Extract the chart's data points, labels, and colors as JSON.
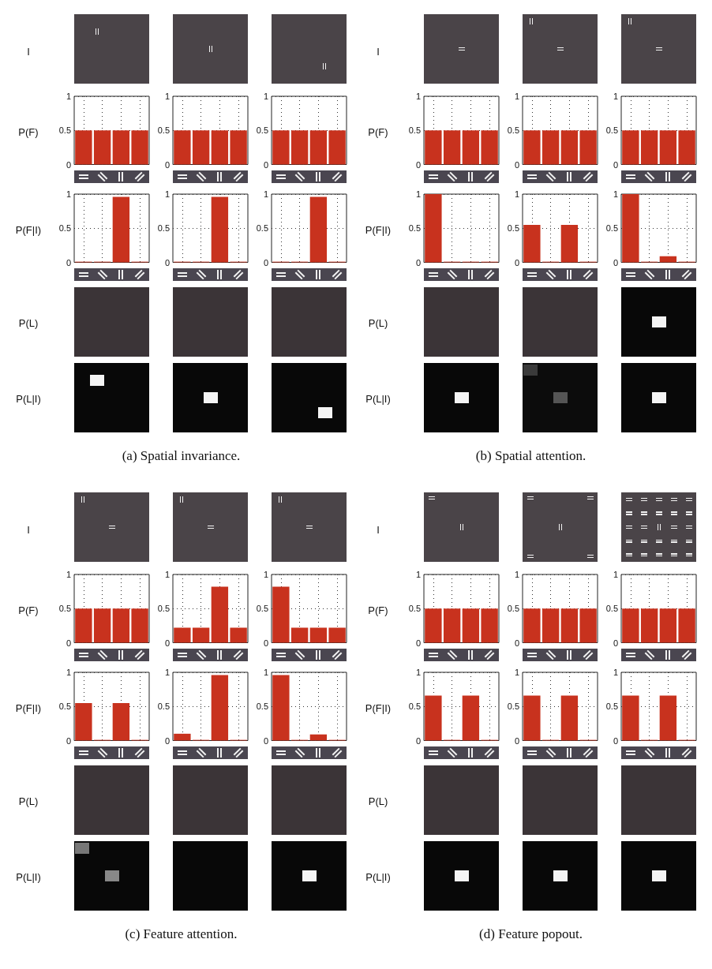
{
  "chart_data": [
    {
      "type": "other",
      "annotations": [
        "I",
        "P(L)",
        "P(L|I)",
        "(a) Spatial invariance."
      ]
    },
    {
      "type": "bar",
      "ylabel": "P(F)",
      "categories": [
        null,
        null,
        null,
        null
      ],
      "values": [
        0.5,
        0.5,
        0.5,
        0.5
      ],
      "color": "#c8321e",
      "ylim": [
        0,
        1
      ],
      "yticks": [
        0,
        0.5,
        1
      ],
      "grid": true
    },
    {
      "type": "bar",
      "categories": [
        null,
        null,
        null,
        null
      ],
      "values": [
        0.5,
        0.5,
        0.5,
        0.5
      ],
      "color": "#c8321e",
      "ylim": [
        0,
        1
      ],
      "yticks": [
        0,
        0.5,
        1
      ],
      "grid": true
    },
    {
      "type": "bar",
      "categories": [
        null,
        null,
        null,
        null
      ],
      "values": [
        0.5,
        0.5,
        0.5,
        0.5
      ],
      "color": "#c8321e",
      "ylim": [
        0,
        1
      ],
      "yticks": [
        0,
        0.5,
        1
      ],
      "grid": true
    },
    {
      "type": "bar",
      "ylabel": "P(F|I)",
      "categories": [
        null,
        null,
        null,
        null
      ],
      "values": [
        0.01,
        0.01,
        0.96,
        0.01
      ],
      "color": "#c8321e",
      "ylim": [
        0,
        1
      ],
      "yticks": [
        0,
        0.5,
        1
      ],
      "grid": true
    },
    {
      "type": "bar",
      "categories": [
        null,
        null,
        null,
        null
      ],
      "values": [
        0.01,
        0.01,
        0.96,
        0.01
      ],
      "color": "#c8321e",
      "ylim": [
        0,
        1
      ],
      "yticks": [
        0,
        0.5,
        1
      ],
      "grid": true
    },
    {
      "type": "bar",
      "categories": [
        null,
        null,
        null,
        null
      ],
      "values": [
        0.01,
        0.01,
        0.96,
        0.01
      ],
      "color": "#c8321e",
      "ylim": [
        0,
        1
      ],
      "yticks": [
        0,
        0.5,
        1
      ],
      "grid": true
    },
    {
      "type": "other",
      "annotations": [
        "I",
        "P(L)",
        "P(L|I)",
        "(b) Spatial attention."
      ]
    },
    {
      "type": "bar",
      "ylabel": "P(F)",
      "categories": [
        null,
        null,
        null,
        null
      ],
      "values": [
        0.5,
        0.5,
        0.5,
        0.5
      ],
      "color": "#c8321e",
      "ylim": [
        0,
        1
      ],
      "yticks": [
        0,
        0.5,
        1
      ],
      "grid": true
    },
    {
      "type": "bar",
      "categories": [
        null,
        null,
        null,
        null
      ],
      "values": [
        0.5,
        0.5,
        0.5,
        0.5
      ],
      "color": "#c8321e",
      "ylim": [
        0,
        1
      ],
      "yticks": [
        0,
        0.5,
        1
      ],
      "grid": true
    },
    {
      "type": "bar",
      "categories": [
        null,
        null,
        null,
        null
      ],
      "values": [
        0.5,
        0.5,
        0.5,
        0.5
      ],
      "color": "#c8321e",
      "ylim": [
        0,
        1
      ],
      "yticks": [
        0,
        0.5,
        1
      ],
      "grid": true
    },
    {
      "type": "bar",
      "ylabel": "P(F|I)",
      "categories": [
        null,
        null,
        null,
        null
      ],
      "values": [
        1,
        0.01,
        0.01,
        0.01
      ],
      "color": "#c8321e",
      "ylim": [
        0,
        1
      ],
      "yticks": [
        0,
        0.5,
        1
      ],
      "grid": true
    },
    {
      "type": "bar",
      "categories": [
        null,
        null,
        null,
        null
      ],
      "values": [
        0.55,
        0.01,
        0.55,
        0.01
      ],
      "color": "#c8321e",
      "ylim": [
        0,
        1
      ],
      "yticks": [
        0,
        0.5,
        1
      ],
      "grid": true
    },
    {
      "type": "bar",
      "categories": [
        null,
        null,
        null,
        null
      ],
      "values": [
        1,
        0.01,
        0.09,
        0.01
      ],
      "color": "#c8321e",
      "ylim": [
        0,
        1
      ],
      "yticks": [
        0,
        0.5,
        1
      ],
      "grid": true
    },
    {
      "type": "other",
      "annotations": [
        "I",
        "P(L)",
        "P(L|I)",
        "(c) Feature attention."
      ]
    },
    {
      "type": "bar",
      "ylabel": "P(F)",
      "categories": [
        null,
        null,
        null,
        null
      ],
      "values": [
        0.5,
        0.5,
        0.5,
        0.5
      ],
      "color": "#c8321e",
      "ylim": [
        0,
        1
      ],
      "yticks": [
        0,
        0.5,
        1
      ],
      "grid": true
    },
    {
      "type": "bar",
      "categories": [
        null,
        null,
        null,
        null
      ],
      "values": [
        0.22,
        0.22,
        0.82,
        0.22
      ],
      "color": "#c8321e",
      "ylim": [
        0,
        1
      ],
      "yticks": [
        0,
        0.5,
        1
      ],
      "grid": true
    },
    {
      "type": "bar",
      "categories": [
        null,
        null,
        null,
        null
      ],
      "values": [
        0.82,
        0.22,
        0.22,
        0.22
      ],
      "color": "#c8321e",
      "ylim": [
        0,
        1
      ],
      "yticks": [
        0,
        0.5,
        1
      ],
      "grid": true
    },
    {
      "type": "bar",
      "ylabel": "P(F|I)",
      "categories": [
        null,
        null,
        null,
        null
      ],
      "values": [
        0.55,
        0.01,
        0.55,
        0.01
      ],
      "color": "#c8321e",
      "ylim": [
        0,
        1
      ],
      "yticks": [
        0,
        0.5,
        1
      ],
      "grid": true
    },
    {
      "type": "bar",
      "categories": [
        null,
        null,
        null,
        null
      ],
      "values": [
        0.1,
        0.01,
        0.96,
        0.01
      ],
      "color": "#c8321e",
      "ylim": [
        0,
        1
      ],
      "yticks": [
        0,
        0.5,
        1
      ],
      "grid": true
    },
    {
      "type": "bar",
      "categories": [
        null,
        null,
        null,
        null
      ],
      "values": [
        0.96,
        0.01,
        0.09,
        0.01
      ],
      "color": "#c8321e",
      "ylim": [
        0,
        1
      ],
      "yticks": [
        0,
        0.5,
        1
      ],
      "grid": true
    },
    {
      "type": "other",
      "annotations": [
        "I",
        "P(L)",
        "P(L|I)",
        "(d) Feature popout."
      ]
    },
    {
      "type": "bar",
      "ylabel": "P(F)",
      "categories": [
        null,
        null,
        null,
        null
      ],
      "values": [
        0.5,
        0.5,
        0.5,
        0.5
      ],
      "color": "#c8321e",
      "ylim": [
        0,
        1
      ],
      "yticks": [
        0,
        0.5,
        1
      ],
      "grid": true
    },
    {
      "type": "bar",
      "categories": [
        null,
        null,
        null,
        null
      ],
      "values": [
        0.5,
        0.5,
        0.5,
        0.5
      ],
      "color": "#c8321e",
      "ylim": [
        0,
        1
      ],
      "yticks": [
        0,
        0.5,
        1
      ],
      "grid": true
    },
    {
      "type": "bar",
      "categories": [
        null,
        null,
        null,
        null
      ],
      "values": [
        0.5,
        0.5,
        0.5,
        0.5
      ],
      "color": "#c8321e",
      "ylim": [
        0,
        1
      ],
      "yticks": [
        0,
        0.5,
        1
      ],
      "grid": true
    },
    {
      "type": "bar",
      "ylabel": "P(F|I)",
      "categories": [
        null,
        null,
        null,
        null
      ],
      "values": [
        0.66,
        0.01,
        0.66,
        0.01
      ],
      "color": "#c8321e",
      "ylim": [
        0,
        1
      ],
      "yticks": [
        0,
        0.5,
        1
      ],
      "grid": true
    },
    {
      "type": "bar",
      "categories": [
        null,
        null,
        null,
        null
      ],
      "values": [
        0.66,
        0.01,
        0.66,
        0.01
      ],
      "color": "#c8321e",
      "ylim": [
        0,
        1
      ],
      "yticks": [
        0,
        0.5,
        1
      ],
      "grid": true
    },
    {
      "type": "bar",
      "categories": [
        null,
        null,
        null,
        null
      ],
      "values": [
        0.66,
        0.01,
        0.66,
        0.01
      ],
      "color": "#c8321e",
      "ylim": [
        0,
        1
      ],
      "yticks": [
        0,
        0.5,
        1
      ],
      "grid": true
    }
  ]
}
